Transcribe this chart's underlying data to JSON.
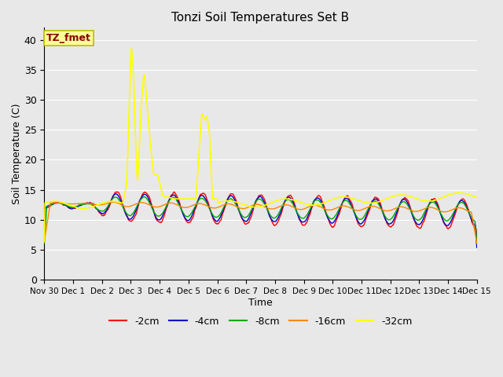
{
  "title": "Tonzi Soil Temperatures Set B",
  "xlabel": "Time",
  "ylabel": "Soil Temperature (C)",
  "ylim": [
    0,
    42
  ],
  "yticks": [
    0,
    5,
    10,
    15,
    20,
    25,
    30,
    35,
    40
  ],
  "colors": {
    "-2cm": "#ff0000",
    "-4cm": "#0000cc",
    "-8cm": "#00aa00",
    "-16cm": "#ff8800",
    "-32cm": "#ffff00"
  },
  "legend_label": "TZ_fmet",
  "legend_box_facecolor": "#ffff99",
  "legend_box_edgecolor": "#bbbb00",
  "legend_text_color": "#880000",
  "plot_bg_color": "#e8e8e8",
  "fig_bg_color": "#e8e8e8",
  "grid_color": "#ffffff",
  "n_days": 15,
  "xlim": [
    0,
    15
  ]
}
